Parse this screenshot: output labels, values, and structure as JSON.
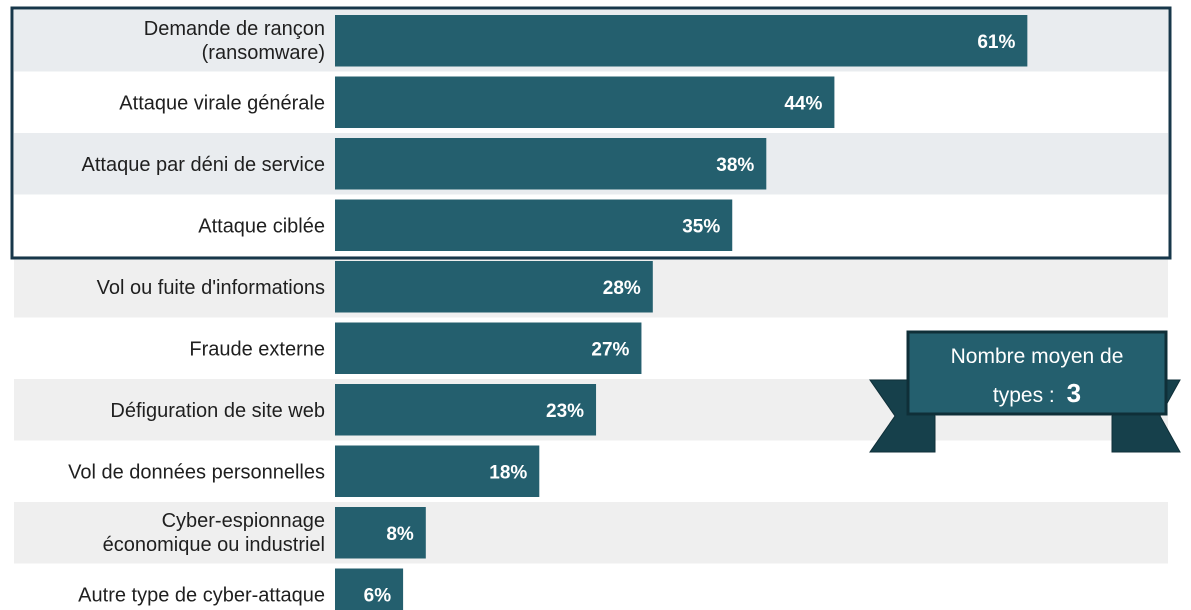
{
  "chart_data": {
    "type": "bar",
    "orientation": "horizontal",
    "categories": [
      [
        "Demande de rançon",
        "(ransomware)"
      ],
      [
        "Attaque virale générale"
      ],
      [
        "Attaque par déni de service"
      ],
      [
        "Attaque ciblée"
      ],
      [
        "Vol ou fuite d'informations"
      ],
      [
        "Fraude externe"
      ],
      [
        "Défiguration de site web"
      ],
      [
        "Vol de données personnelles"
      ],
      [
        "Cyber-espionnage",
        "économique ou industriel"
      ],
      [
        "Autre type de cyber-attaque"
      ]
    ],
    "values": [
      61,
      44,
      38,
      35,
      28,
      27,
      23,
      18,
      8,
      6
    ],
    "value_labels": [
      "61%",
      "44%",
      "38%",
      "35%",
      "28%",
      "27%",
      "23%",
      "18%",
      "8%",
      "6%"
    ],
    "title": "",
    "xlabel": "",
    "ylabel": "",
    "xlim": [
      0,
      100
    ],
    "highlighted_top_count": 4,
    "colors": {
      "bar": "#245f6e",
      "row_band": "#efefef",
      "highlight_band": "#e9ecef",
      "highlight_border": "#17374a"
    }
  },
  "badge": {
    "line1": "Nombre moyen de",
    "line2": "types :",
    "value": "3",
    "colors": {
      "front": "#245f6e",
      "back": "#16404b",
      "border": "#0f2f38"
    }
  }
}
